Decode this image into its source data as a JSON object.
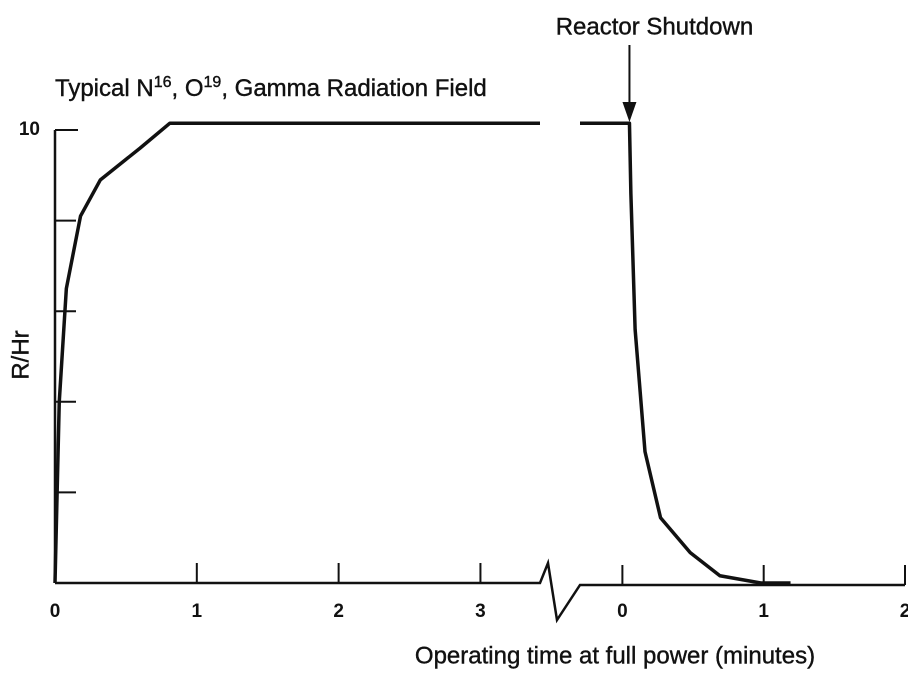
{
  "chart_data": {
    "type": "line",
    "title": [
      "Typical N",
      "16",
      ", O",
      "19",
      ", Gamma Radiation Field"
    ],
    "annotation": {
      "text": "Reactor Shutdown",
      "x": 0.05
    },
    "ylabel": "R/Hr",
    "xlabel": "Operating time at full power (minutes)",
    "ylim": [
      0,
      10
    ],
    "yticks": [
      10
    ],
    "yminor": [
      2,
      4,
      6,
      8
    ],
    "color": "#111111",
    "segments": [
      {
        "xlim": [
          0,
          3.42
        ],
        "xticks": [
          0,
          1,
          2,
          3
        ],
        "x": [
          0,
          0.03,
          0.08,
          0.18,
          0.32,
          0.6,
          0.81,
          3.42
        ],
        "values": [
          0,
          4,
          6.5,
          8.1,
          8.9,
          9.6,
          10.15,
          10.15
        ]
      },
      {
        "xlim": [
          -0.3,
          2
        ],
        "xticks": [
          0,
          1,
          2
        ],
        "x": [
          -0.3,
          0.05,
          0.06,
          0.09,
          0.16,
          0.27,
          0.48,
          0.69,
          0.98,
          1.19
        ],
        "values": [
          10.15,
          10.15,
          8.6,
          5.6,
          2.9,
          1.44,
          0.67,
          0.16,
          0,
          0
        ]
      }
    ]
  }
}
